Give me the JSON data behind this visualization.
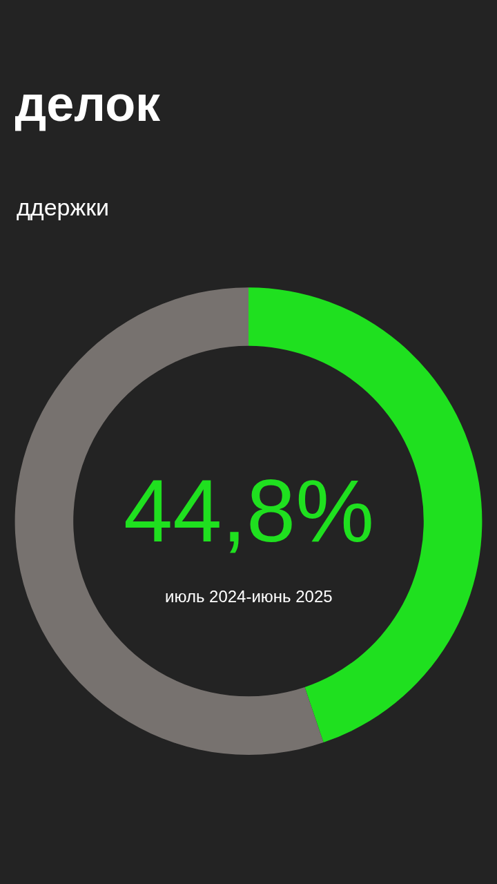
{
  "chart_data": {
    "type": "donut",
    "title": "делок",
    "subtitle": "ддержки",
    "categories": [
      null,
      null
    ],
    "values": [
      44.8,
      55.2
    ],
    "colors": [
      "#1fe01f",
      "#77726f"
    ],
    "annotations": [
      "44,8%",
      "июль 2024-июнь 2025"
    ]
  }
}
